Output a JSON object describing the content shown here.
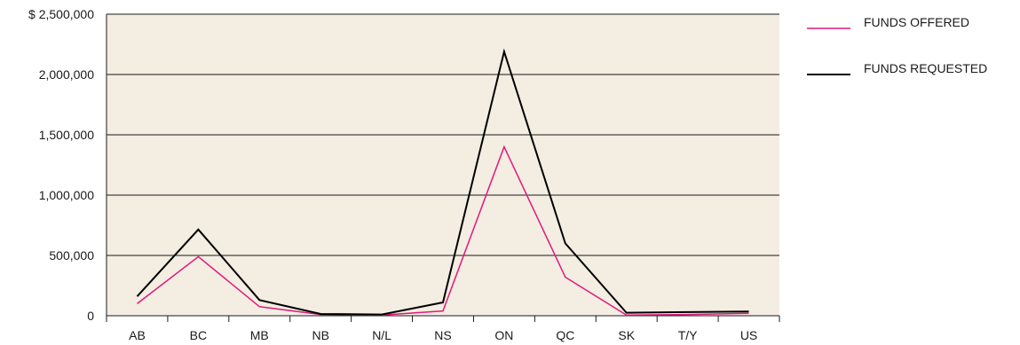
{
  "chart_data": {
    "type": "line",
    "categories": [
      "AB",
      "BC",
      "MB",
      "NB",
      "N/L",
      "NS",
      "ON",
      "QC",
      "SK",
      "T/Y",
      "US"
    ],
    "ylim": [
      0,
      2500000
    ],
    "y_ticks": [
      0,
      500000,
      1000000,
      1500000,
      2000000,
      2500000
    ],
    "y_tick_labels": [
      "0",
      "500,000",
      "1,000,000",
      "1,500,000",
      "2,000,000",
      "$ 2,500,000"
    ],
    "grid": true,
    "legend_position": "right",
    "plot_background": "#f3ede2",
    "series": [
      {
        "name": "FUNDS OFFERED",
        "color": "#e0197d",
        "values": [
          100000,
          490000,
          75000,
          10000,
          5000,
          40000,
          1400000,
          320000,
          5000,
          10000,
          20000
        ]
      },
      {
        "name": "FUNDS REQUESTED",
        "color": "#000000",
        "values": [
          160000,
          715000,
          130000,
          15000,
          10000,
          110000,
          2190000,
          600000,
          25000,
          30000,
          35000
        ]
      }
    ]
  }
}
